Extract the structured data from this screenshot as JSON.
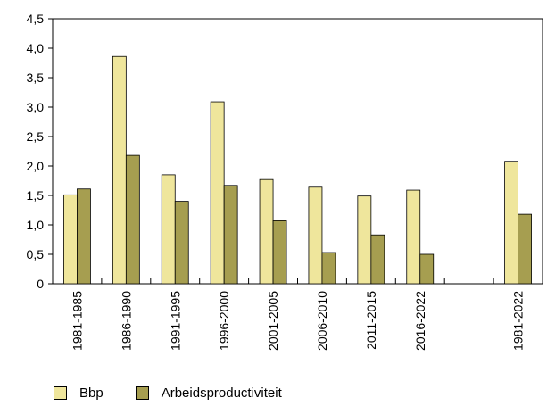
{
  "chart_data": {
    "type": "bar",
    "title": "",
    "xlabel": "",
    "ylabel": "",
    "categories": [
      "1981-1985",
      "1986-1990",
      "1991-1995",
      "1996-2000",
      "2001-2005",
      "2006-2010",
      "2011-2015",
      "2016-2022",
      "",
      "1981-2022"
    ],
    "series": [
      {
        "name": "Bbp",
        "color": "#efe69c",
        "values": [
          1.51,
          3.86,
          1.85,
          3.09,
          1.77,
          1.64,
          1.49,
          1.59,
          null,
          2.08
        ]
      },
      {
        "name": "Arbeidsproductiviteit",
        "color": "#a69e50",
        "values": [
          1.61,
          2.18,
          1.4,
          1.67,
          1.07,
          0.53,
          0.83,
          0.5,
          null,
          1.18
        ]
      }
    ],
    "ylim": [
      0,
      4.5
    ],
    "yticks": [
      "0",
      "0,5",
      "1,0",
      "1,5",
      "2,0",
      "2,5",
      "3,0",
      "3,5",
      "4,0",
      "4,5"
    ],
    "grid": false,
    "legend": "bottom-left"
  }
}
